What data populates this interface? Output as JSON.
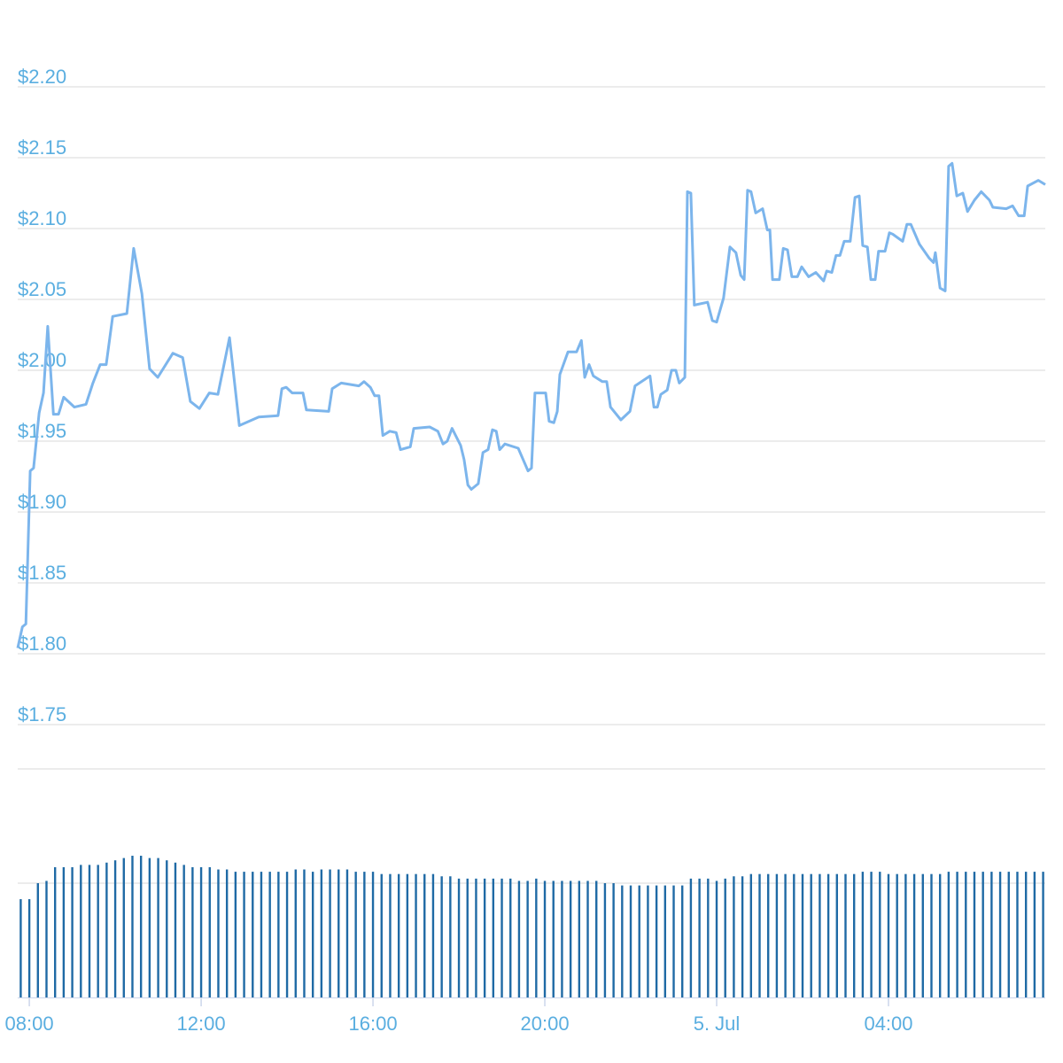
{
  "chart_data": [
    {
      "type": "line",
      "color": "#7cb5ec",
      "x": [
        7.73,
        7.84,
        7.92,
        8.02,
        8.1,
        8.23,
        8.33,
        8.43,
        8.56,
        8.68,
        8.8,
        9.05,
        9.32,
        9.48,
        9.65,
        9.79,
        9.94,
        10.27,
        10.43,
        10.62,
        10.8,
        10.99,
        11.34,
        11.57,
        11.75,
        11.96,
        12.19,
        12.39,
        12.66,
        12.89,
        13.34,
        13.79,
        13.88,
        13.98,
        14.12,
        14.37,
        14.45,
        14.97,
        15.05,
        15.26,
        15.67,
        15.79,
        15.94,
        16.04,
        16.14,
        16.23,
        16.39,
        16.54,
        16.64,
        16.87,
        16.95,
        17.32,
        17.51,
        17.63,
        17.73,
        17.84,
        18.04,
        18.12,
        18.21,
        18.29,
        18.45,
        18.56,
        18.68,
        18.78,
        18.87,
        18.95,
        19.07,
        19.38,
        19.61,
        19.69,
        19.77,
        20.02,
        20.1,
        20.21,
        20.29,
        20.35,
        20.54,
        20.74,
        20.85,
        20.93,
        21.03,
        21.13,
        21.34,
        21.44,
        21.53,
        21.77,
        21.98,
        22.1,
        22.45,
        22.54,
        22.62,
        22.7,
        22.85,
        22.95,
        23.05,
        23.13,
        23.26,
        23.32,
        23.4,
        23.48,
        23.79,
        23.9,
        24.0,
        24.16,
        24.31,
        24.45,
        24.56,
        24.64,
        24.72,
        24.8,
        24.91,
        25.07,
        25.18,
        25.24,
        25.3,
        25.46,
        25.55,
        25.65,
        25.75,
        25.88,
        25.98,
        26.14,
        26.31,
        26.49,
        26.56,
        26.68,
        26.78,
        26.87,
        26.97,
        27.11,
        27.22,
        27.32,
        27.4,
        27.51,
        27.59,
        27.69,
        27.77,
        27.92,
        28.02,
        28.1,
        28.33,
        28.43,
        28.52,
        28.72,
        28.95,
        29.05,
        29.09,
        29.2,
        29.32,
        29.4,
        29.48,
        29.59,
        29.73,
        29.84,
        30.0,
        30.16,
        30.35,
        30.43,
        30.74,
        30.89,
        31.03,
        31.16,
        31.24,
        31.49,
        31.65
      ],
      "values": [
        1.804,
        1.819,
        1.821,
        1.929,
        1.931,
        1.97,
        1.984,
        2.031,
        1.969,
        1.969,
        1.981,
        1.974,
        1.976,
        1.991,
        2.004,
        2.004,
        2.038,
        2.04,
        2.086,
        2.054,
        2.001,
        1.995,
        2.012,
        2.009,
        1.978,
        1.973,
        1.984,
        1.983,
        2.023,
        1.961,
        1.967,
        1.968,
        1.987,
        1.988,
        1.984,
        1.984,
        1.972,
        1.971,
        1.987,
        1.991,
        1.989,
        1.992,
        1.988,
        1.982,
        1.982,
        1.954,
        1.957,
        1.956,
        1.944,
        1.946,
        1.959,
        1.96,
        1.957,
        1.948,
        1.95,
        1.959,
        1.947,
        1.937,
        1.919,
        1.916,
        1.92,
        1.942,
        1.944,
        1.958,
        1.957,
        1.944,
        1.948,
        1.945,
        1.929,
        1.931,
        1.984,
        1.984,
        1.964,
        1.963,
        1.971,
        1.997,
        2.013,
        2.013,
        2.021,
        1.995,
        2.004,
        1.996,
        1.992,
        1.992,
        1.974,
        1.965,
        1.971,
        1.989,
        1.996,
        1.974,
        1.974,
        1.983,
        1.986,
        2.0,
        2.0,
        1.991,
        1.995,
        2.126,
        2.125,
        2.046,
        2.048,
        2.035,
        2.034,
        2.051,
        2.087,
        2.083,
        2.067,
        2.064,
        2.127,
        2.126,
        2.111,
        2.114,
        2.099,
        2.099,
        2.064,
        2.064,
        2.086,
        2.085,
        2.066,
        2.066,
        2.073,
        2.066,
        2.069,
        2.063,
        2.07,
        2.069,
        2.081,
        2.081,
        2.091,
        2.091,
        2.122,
        2.123,
        2.088,
        2.087,
        2.064,
        2.064,
        2.084,
        2.084,
        2.097,
        2.096,
        2.091,
        2.103,
        2.103,
        2.089,
        2.079,
        2.076,
        2.083,
        2.058,
        2.056,
        2.144,
        2.146,
        2.123,
        2.125,
        2.112,
        2.12,
        2.126,
        2.12,
        2.115,
        2.114,
        2.116,
        2.109,
        2.109,
        2.13,
        2.134,
        2.131
      ],
      "xlim": [
        7.73,
        31.65
      ],
      "ylim": [
        1.75,
        2.2
      ],
      "yticks": [
        {
          "value": 1.75,
          "label": "$1.75"
        },
        {
          "value": 1.8,
          "label": "$1.80"
        },
        {
          "value": 1.85,
          "label": "$1.85"
        },
        {
          "value": 1.9,
          "label": "$1.90"
        },
        {
          "value": 1.95,
          "label": "$1.95"
        },
        {
          "value": 2.0,
          "label": "$2.00"
        },
        {
          "value": 2.05,
          "label": "$2.05"
        },
        {
          "value": 2.1,
          "label": "$2.10"
        },
        {
          "value": 2.15,
          "label": "$2.15"
        },
        {
          "value": 2.2,
          "label": "$2.20"
        }
      ],
      "grid": true
    },
    {
      "type": "bar",
      "color": "#1f6aa5",
      "x": [
        7.8,
        8.0,
        8.2,
        8.4,
        8.6,
        8.8,
        9.0,
        9.2,
        9.4,
        9.6,
        9.8,
        10.0,
        10.2,
        10.4,
        10.6,
        10.8,
        11.0,
        11.2,
        11.4,
        11.6,
        11.8,
        12.0,
        12.2,
        12.4,
        12.6,
        12.8,
        13.0,
        13.2,
        13.4,
        13.6,
        13.8,
        14.0,
        14.2,
        14.4,
        14.6,
        14.8,
        15.0,
        15.2,
        15.4,
        15.6,
        15.8,
        16.0,
        16.2,
        16.4,
        16.6,
        16.8,
        17.0,
        17.2,
        17.4,
        17.6,
        17.8,
        18.0,
        18.2,
        18.4,
        18.6,
        18.8,
        19.0,
        19.2,
        19.4,
        19.6,
        19.8,
        20.0,
        20.2,
        20.4,
        20.6,
        20.8,
        21.0,
        21.2,
        21.4,
        21.6,
        21.8,
        22.0,
        22.2,
        22.4,
        22.6,
        22.8,
        23.0,
        23.2,
        23.4,
        23.6,
        23.8,
        24.0,
        24.2,
        24.4,
        24.6,
        24.8,
        25.0,
        25.2,
        25.4,
        25.6,
        25.8,
        26.0,
        26.2,
        26.4,
        26.6,
        26.8,
        27.0,
        27.2,
        27.4,
        27.6,
        27.8,
        28.0,
        28.2,
        28.4,
        28.6,
        28.8,
        29.0,
        29.2,
        29.4,
        29.6,
        29.8,
        30.0,
        30.2,
        30.4,
        30.6,
        30.8,
        31.0,
        31.2,
        31.4,
        31.6
      ],
      "values": [
        43,
        43,
        50,
        51,
        57,
        57,
        57,
        58,
        58,
        58,
        59,
        60,
        61,
        62,
        62,
        61,
        61,
        60,
        59,
        58,
        57,
        57,
        57,
        56,
        56,
        55,
        55,
        55,
        55,
        55,
        55,
        55,
        56,
        56,
        55,
        56,
        56,
        56,
        56,
        55,
        55,
        55,
        54,
        54,
        54,
        54,
        54,
        54,
        54,
        53,
        53,
        52,
        52,
        52,
        52,
        52,
        52,
        52,
        51,
        51,
        52,
        51,
        51,
        51,
        51,
        51,
        51,
        51,
        50,
        50,
        49,
        49,
        49,
        49,
        49,
        49,
        49,
        49,
        52,
        52,
        52,
        51,
        52,
        53,
        53,
        54,
        54,
        54,
        54,
        54,
        54,
        54,
        54,
        54,
        54,
        54,
        54,
        54,
        55,
        55,
        55,
        54,
        54,
        54,
        54,
        54,
        54,
        54,
        55,
        55,
        55,
        55,
        55,
        55,
        55,
        55,
        55,
        55,
        55,
        55
      ],
      "xlim": [
        7.73,
        31.65
      ],
      "xticks": [
        {
          "value": 8,
          "label": "08:00"
        },
        {
          "value": 12,
          "label": "12:00"
        },
        {
          "value": 16,
          "label": "16:00"
        },
        {
          "value": 20,
          "label": "20:00"
        },
        {
          "value": 24,
          "label": "5. Jul"
        },
        {
          "value": 28,
          "label": "04:00"
        }
      ],
      "ylim": [
        0,
        100
      ],
      "yticks": [
        50,
        100
      ],
      "grid": true
    }
  ]
}
